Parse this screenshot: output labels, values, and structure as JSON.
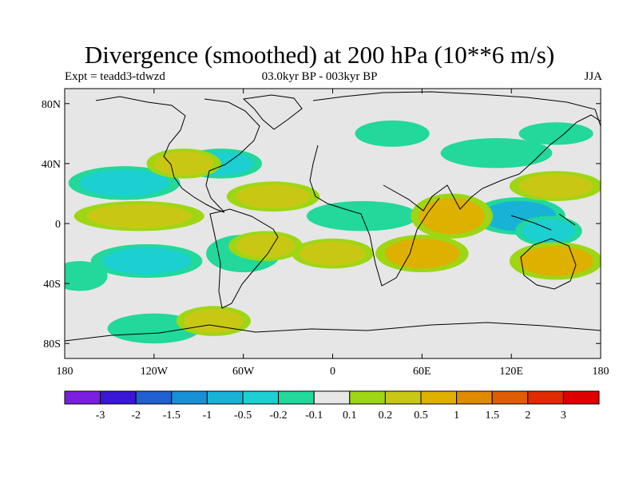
{
  "title": "Divergence (smoothed) at 200 hPa (10**6 m/s)",
  "subtitle_left": "Expt = teadd3-tdwzd",
  "subtitle_center": "03.0kyr BP - 003kyr BP",
  "subtitle_right": "JJA",
  "chart_data": {
    "type": "heatmap",
    "projection": "cylindrical-equidistant",
    "x_range": [
      -180,
      180
    ],
    "y_range": [
      -90,
      90
    ],
    "x_ticks": [
      -180,
      -120,
      -60,
      0,
      60,
      120,
      180
    ],
    "x_tick_labels": [
      "180",
      "120W",
      "60W",
      "0",
      "60E",
      "120E",
      "180"
    ],
    "y_ticks": [
      80,
      40,
      0,
      -40,
      -80
    ],
    "y_tick_labels": [
      "80N",
      "40N",
      "0",
      "40S",
      "80S"
    ],
    "colorbar": {
      "labels": [
        "-3",
        "-2",
        "-1.5",
        "-1",
        "-0.5",
        "-0.2",
        "-0.1",
        "0.1",
        "0.2",
        "0.5",
        "1",
        "1.5",
        "2",
        "3"
      ],
      "colors": [
        "#7a1fe0",
        "#3a16d6",
        "#1f5fd0",
        "#1890d6",
        "#18b2d6",
        "#1ccfd0",
        "#22d89a",
        "#e6e6e6",
        "#9ed614",
        "#c8c814",
        "#deb000",
        "#e08a00",
        "#e05c00",
        "#e02a00",
        "#e00000"
      ]
    },
    "features": [
      {
        "lon": 125,
        "lat": 5,
        "rx": 25,
        "ry": 10,
        "level": -0.8
      },
      {
        "lon": 145,
        "lat": -5,
        "rx": 18,
        "ry": 8,
        "level": -0.5
      },
      {
        "lon": -140,
        "lat": 27,
        "rx": 30,
        "ry": 9,
        "level": -0.3
      },
      {
        "lon": -75,
        "lat": 40,
        "rx": 22,
        "ry": 8,
        "level": -0.3
      },
      {
        "lon": -125,
        "lat": -25,
        "rx": 30,
        "ry": 9,
        "level": -0.3
      },
      {
        "lon": -60,
        "lat": -20,
        "rx": 20,
        "ry": 10,
        "level": -0.2
      },
      {
        "lon": 20,
        "lat": 5,
        "rx": 30,
        "ry": 8,
        "level": -0.2
      },
      {
        "lon": 110,
        "lat": 47,
        "rx": 30,
        "ry": 8,
        "level": -0.2
      },
      {
        "lon": 40,
        "lat": 60,
        "rx": 20,
        "ry": 7,
        "level": -0.2
      },
      {
        "lon": 150,
        "lat": 60,
        "rx": 20,
        "ry": 6,
        "level": -0.2
      },
      {
        "lon": -170,
        "lat": -35,
        "rx": 15,
        "ry": 8,
        "level": -0.2
      },
      {
        "lon": -120,
        "lat": -70,
        "rx": 25,
        "ry": 8,
        "level": -0.2
      },
      {
        "lon": 80,
        "lat": 5,
        "rx": 22,
        "ry": 12,
        "level": 0.8
      },
      {
        "lon": 60,
        "lat": -20,
        "rx": 25,
        "ry": 10,
        "level": 0.6
      },
      {
        "lon": 150,
        "lat": -25,
        "rx": 25,
        "ry": 10,
        "level": 0.6
      },
      {
        "lon": -130,
        "lat": 5,
        "rx": 35,
        "ry": 8,
        "level": 0.4
      },
      {
        "lon": -40,
        "lat": 18,
        "rx": 25,
        "ry": 8,
        "level": 0.4
      },
      {
        "lon": -45,
        "lat": -15,
        "rx": 20,
        "ry": 8,
        "level": 0.4
      },
      {
        "lon": 0,
        "lat": -20,
        "rx": 22,
        "ry": 8,
        "level": 0.3
      },
      {
        "lon": -80,
        "lat": -65,
        "rx": 20,
        "ry": 8,
        "level": 0.3
      },
      {
        "lon": 150,
        "lat": 25,
        "rx": 25,
        "ry": 8,
        "level": 0.3
      },
      {
        "lon": -100,
        "lat": 40,
        "rx": 20,
        "ry": 8,
        "level": 0.2
      }
    ]
  }
}
